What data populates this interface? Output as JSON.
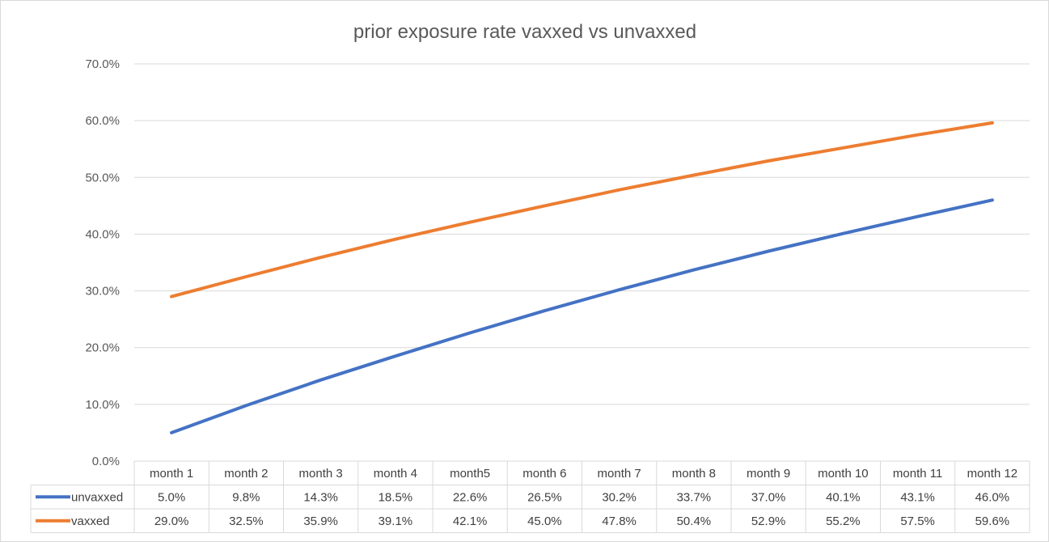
{
  "chart_data": {
    "type": "line",
    "title": "prior exposure rate vaxxed vs unvaxxed",
    "xlabel": "",
    "ylabel": "",
    "ylim": [
      0,
      70
    ],
    "y_ticks": [
      "0.0%",
      "10.0%",
      "20.0%",
      "30.0%",
      "40.0%",
      "50.0%",
      "60.0%",
      "70.0%"
    ],
    "categories": [
      "month 1",
      "month 2",
      "month 3",
      "month 4",
      "month5",
      "month 6",
      "month 7",
      "month 8",
      "month 9",
      "month 10",
      "month 11",
      "month 12"
    ],
    "series": [
      {
        "name": "unvaxxed",
        "color": "#4472c4",
        "values": [
          5.0,
          9.8,
          14.3,
          18.5,
          22.6,
          26.5,
          30.2,
          33.7,
          37.0,
          40.1,
          43.1,
          46.0
        ],
        "labels": [
          "5.0%",
          "9.8%",
          "14.3%",
          "18.5%",
          "22.6%",
          "26.5%",
          "30.2%",
          "33.7%",
          "37.0%",
          "40.1%",
          "43.1%",
          "46.0%"
        ]
      },
      {
        "name": "vaxxed",
        "color": "#ed7d31",
        "values": [
          29.0,
          32.5,
          35.9,
          39.1,
          42.1,
          45.0,
          47.8,
          50.4,
          52.9,
          55.2,
          57.5,
          59.6
        ],
        "labels": [
          "29.0%",
          "32.5%",
          "35.9%",
          "39.1%",
          "42.1%",
          "45.0%",
          "47.8%",
          "50.4%",
          "52.9%",
          "55.2%",
          "57.5%",
          "59.6%"
        ]
      }
    ],
    "grid": true,
    "legend": "data-table-below"
  }
}
